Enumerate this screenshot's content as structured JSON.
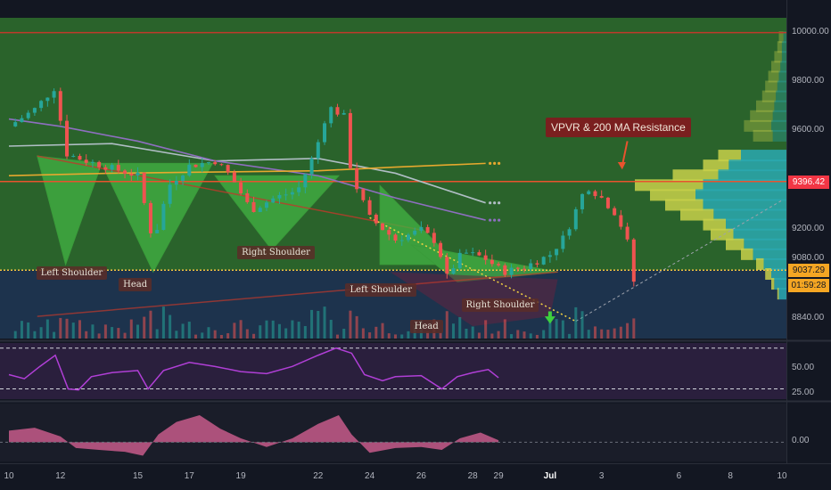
{
  "chart_data": {
    "type": "candlestick-annotated",
    "price_panel": {
      "ylim": [
        8760,
        10060
      ],
      "y_ticks": [
        {
          "value": 10000,
          "label": "10000.00"
        },
        {
          "value": 9800,
          "label": "9800.00"
        },
        {
          "value": 9600,
          "label": "9600.00"
        },
        {
          "value": 9200,
          "label": "9200.00"
        },
        {
          "value": 9080,
          "label": "9080.00"
        },
        {
          "value": 8840,
          "label": "8840.00"
        }
      ],
      "price_tags": [
        {
          "value": 9396.42,
          "label": "9396.42",
          "bg": "#f23645",
          "fg": "#ffffff"
        },
        {
          "value": 9037.29,
          "label": "9037.29",
          "bg": "#f5a623",
          "fg": "#131722"
        },
        {
          "value": 9000,
          "label": "01:59:28",
          "bg": "#f5a623",
          "fg": "#131722"
        }
      ],
      "close_path": [
        {
          "d": 0,
          "p": 9620
        },
        {
          "d": 1,
          "p": 9690
        },
        {
          "d": 1.8,
          "p": 9780
        },
        {
          "d": 2.2,
          "p": 9510
        },
        {
          "d": 3,
          "p": 9480
        },
        {
          "d": 4,
          "p": 9450
        },
        {
          "d": 5,
          "p": 9420
        },
        {
          "d": 5.6,
          "p": 9150
        },
        {
          "d": 6.2,
          "p": 9380
        },
        {
          "d": 7,
          "p": 9460
        },
        {
          "d": 8,
          "p": 9480
        },
        {
          "d": 8.6,
          "p": 9420
        },
        {
          "d": 9.4,
          "p": 9280
        },
        {
          "d": 10.3,
          "p": 9330
        },
        {
          "d": 11.2,
          "p": 9360
        },
        {
          "d": 11.9,
          "p": 9520
        },
        {
          "d": 12.4,
          "p": 9700
        },
        {
          "d": 13,
          "p": 9660
        },
        {
          "d": 13.3,
          "p": 9420
        },
        {
          "d": 14,
          "p": 9250
        },
        {
          "d": 15,
          "p": 9160
        },
        {
          "d": 16,
          "p": 9200
        },
        {
          "d": 16.6,
          "p": 9150
        },
        {
          "d": 17,
          "p": 9010
        },
        {
          "d": 17.6,
          "p": 9110
        },
        {
          "d": 18.4,
          "p": 9090
        },
        {
          "d": 19.2,
          "p": 9030
        },
        {
          "d": 20,
          "p": 9050
        },
        {
          "d": 21,
          "p": 9100
        },
        {
          "d": 21.6,
          "p": 9180
        },
        {
          "d": 22.4,
          "p": 9380
        },
        {
          "d": 23,
          "p": 9330
        },
        {
          "d": 23.6,
          "p": 9260
        },
        {
          "d": 24,
          "p": 9150
        },
        {
          "d": 24.3,
          "p": 8960
        }
      ],
      "moving_averages": [
        {
          "color": "#b0bec5",
          "points": [
            {
              "d": 0,
              "p": 9540
            },
            {
              "d": 4,
              "p": 9550
            },
            {
              "d": 8,
              "p": 9480
            },
            {
              "d": 12,
              "p": 9490
            },
            {
              "d": 15,
              "p": 9430
            },
            {
              "d": 18.5,
              "p": 9310
            }
          ]
        },
        {
          "color": "#8e6fc0",
          "points": [
            {
              "d": 0,
              "p": 9650
            },
            {
              "d": 2,
              "p": 9620
            },
            {
              "d": 5,
              "p": 9560
            },
            {
              "d": 8,
              "p": 9480
            },
            {
              "d": 12,
              "p": 9420
            },
            {
              "d": 15,
              "p": 9330
            },
            {
              "d": 18.5,
              "p": 9240
            }
          ]
        },
        {
          "color": "#e6a82e",
          "points": [
            {
              "d": 0,
              "p": 9420
            },
            {
              "d": 4,
              "p": 9430
            },
            {
              "d": 8,
              "p": 9435
            },
            {
              "d": 12,
              "p": 9440
            },
            {
              "d": 15,
              "p": 9455
            },
            {
              "d": 18.5,
              "p": 9470
            }
          ]
        }
      ],
      "horizontal_lines": [
        {
          "value": 9396.42,
          "color": "#e8532e"
        },
        {
          "value": 9037.29,
          "color": "#f5c542"
        },
        {
          "value": 10000,
          "color": "#c0392b"
        }
      ],
      "pattern_labels": [
        {
          "text": "Left Shoulder",
          "d": 2.1,
          "p": 9025
        },
        {
          "text": "Head",
          "d": 5.3,
          "p": 8975
        },
        {
          "text": "Right Shoulder",
          "d": 9.9,
          "p": 9105
        },
        {
          "text": "Left Shoulder",
          "d": 14.1,
          "p": 8955
        },
        {
          "text": "Right Shoulder",
          "d": 18.6,
          "p": 8895
        },
        {
          "text": "Head",
          "d": 16.6,
          "p": 8808
        }
      ],
      "annotation": "VPVR & 200 MA Resistance"
    },
    "rsi_panel": {
      "ylim": [
        20,
        75
      ],
      "y_ticks": [
        {
          "value": 50,
          "label": "50.00"
        },
        {
          "value": 25,
          "label": "25.00"
        }
      ],
      "bands": [
        70,
        30
      ],
      "points": [
        {
          "d": 0,
          "v": 44
        },
        {
          "d": 0.6,
          "v": 40
        },
        {
          "d": 1.2,
          "v": 52
        },
        {
          "d": 1.8,
          "v": 63
        },
        {
          "d": 2.3,
          "v": 30
        },
        {
          "d": 2.7,
          "v": 29
        },
        {
          "d": 3.2,
          "v": 42
        },
        {
          "d": 4,
          "v": 46
        },
        {
          "d": 5,
          "v": 48
        },
        {
          "d": 5.4,
          "v": 30
        },
        {
          "d": 6,
          "v": 48
        },
        {
          "d": 7,
          "v": 56
        },
        {
          "d": 8,
          "v": 52
        },
        {
          "d": 9,
          "v": 47
        },
        {
          "d": 10,
          "v": 45
        },
        {
          "d": 11,
          "v": 52
        },
        {
          "d": 12,
          "v": 63
        },
        {
          "d": 12.7,
          "v": 70
        },
        {
          "d": 13.3,
          "v": 65
        },
        {
          "d": 13.8,
          "v": 44
        },
        {
          "d": 14.5,
          "v": 38
        },
        {
          "d": 15,
          "v": 42
        },
        {
          "d": 16,
          "v": 43
        },
        {
          "d": 16.8,
          "v": 30
        },
        {
          "d": 17.4,
          "v": 42
        },
        {
          "d": 18,
          "v": 46
        },
        {
          "d": 18.6,
          "v": 49
        },
        {
          "d": 19,
          "v": 41
        }
      ]
    },
    "histogram_panel": {
      "ylim": [
        -2,
        4
      ],
      "y_ticks": [
        {
          "value": 0,
          "label": "0.00"
        }
      ],
      "points": [
        {
          "d": 0,
          "v": 1.2
        },
        {
          "d": 1,
          "v": 1.5
        },
        {
          "d": 2,
          "v": 0.6
        },
        {
          "d": 2.6,
          "v": -0.6
        },
        {
          "d": 3.5,
          "v": -0.8
        },
        {
          "d": 4.5,
          "v": -1.0
        },
        {
          "d": 5.2,
          "v": -1.4
        },
        {
          "d": 5.8,
          "v": 0.8
        },
        {
          "d": 6.5,
          "v": 2.1
        },
        {
          "d": 7.4,
          "v": 2.8
        },
        {
          "d": 8.2,
          "v": 1.4
        },
        {
          "d": 9,
          "v": 0.4
        },
        {
          "d": 10,
          "v": -0.5
        },
        {
          "d": 11,
          "v": 0.4
        },
        {
          "d": 12,
          "v": 1.9
        },
        {
          "d": 12.8,
          "v": 2.8
        },
        {
          "d": 13.3,
          "v": 0.8
        },
        {
          "d": 14,
          "v": -1.1
        },
        {
          "d": 15,
          "v": -0.6
        },
        {
          "d": 16,
          "v": -0.5
        },
        {
          "d": 16.8,
          "v": -0.8
        },
        {
          "d": 17.5,
          "v": 0.4
        },
        {
          "d": 18.3,
          "v": 1.0
        },
        {
          "d": 19,
          "v": 0.2
        }
      ]
    },
    "x_axis": {
      "ticks": [
        {
          "d": 0,
          "label": "10"
        },
        {
          "d": 2,
          "label": "12"
        },
        {
          "d": 5,
          "label": "15"
        },
        {
          "d": 7,
          "label": "17"
        },
        {
          "d": 9,
          "label": "19"
        },
        {
          "d": 12,
          "label": "22"
        },
        {
          "d": 14,
          "label": "24"
        },
        {
          "d": 16,
          "label": "26"
        },
        {
          "d": 18,
          "label": "28"
        },
        {
          "d": 19,
          "label": "29"
        },
        {
          "d": 21,
          "label": "Jul",
          "bold": true
        },
        {
          "d": 23,
          "label": "3"
        },
        {
          "d": 26,
          "label": "6"
        },
        {
          "d": 28,
          "label": "8"
        },
        {
          "d": 30,
          "label": "10"
        }
      ]
    },
    "volume_profile_levels": [
      {
        "p": 9980,
        "buy": 0.05,
        "sell": 0.02
      },
      {
        "p": 9940,
        "buy": 0.06,
        "sell": 0.03
      },
      {
        "p": 9900,
        "buy": 0.08,
        "sell": 0.03
      },
      {
        "p": 9860,
        "buy": 0.1,
        "sell": 0.04
      },
      {
        "p": 9820,
        "buy": 0.12,
        "sell": 0.05
      },
      {
        "p": 9780,
        "buy": 0.14,
        "sell": 0.06
      },
      {
        "p": 9740,
        "buy": 0.16,
        "sell": 0.07
      },
      {
        "p": 9700,
        "buy": 0.2,
        "sell": 0.08
      },
      {
        "p": 9660,
        "buy": 0.24,
        "sell": 0.09
      },
      {
        "p": 9620,
        "buy": 0.28,
        "sell": 0.1
      },
      {
        "p": 9580,
        "buy": 0.22,
        "sell": 0.09
      },
      {
        "p": 9500,
        "buy": 0.45,
        "sell": 0.3
      },
      {
        "p": 9460,
        "buy": 0.55,
        "sell": 0.38
      },
      {
        "p": 9420,
        "buy": 0.75,
        "sell": 0.45
      },
      {
        "p": 9380,
        "buy": 1.0,
        "sell": 0.55
      },
      {
        "p": 9340,
        "buy": 0.9,
        "sell": 0.6
      },
      {
        "p": 9300,
        "buy": 0.8,
        "sell": 0.55
      },
      {
        "p": 9260,
        "buy": 0.7,
        "sell": 0.48
      },
      {
        "p": 9220,
        "buy": 0.55,
        "sell": 0.4
      },
      {
        "p": 9180,
        "buy": 0.5,
        "sell": 0.35
      },
      {
        "p": 9140,
        "buy": 0.4,
        "sell": 0.28
      },
      {
        "p": 9100,
        "buy": 0.3,
        "sell": 0.22
      },
      {
        "p": 9060,
        "buy": 0.2,
        "sell": 0.15
      },
      {
        "p": 9020,
        "buy": 0.14,
        "sell": 0.1
      },
      {
        "p": 8980,
        "buy": 0.1,
        "sell": 0.08
      },
      {
        "p": 8940,
        "buy": 0.06,
        "sell": 0.05
      }
    ]
  }
}
